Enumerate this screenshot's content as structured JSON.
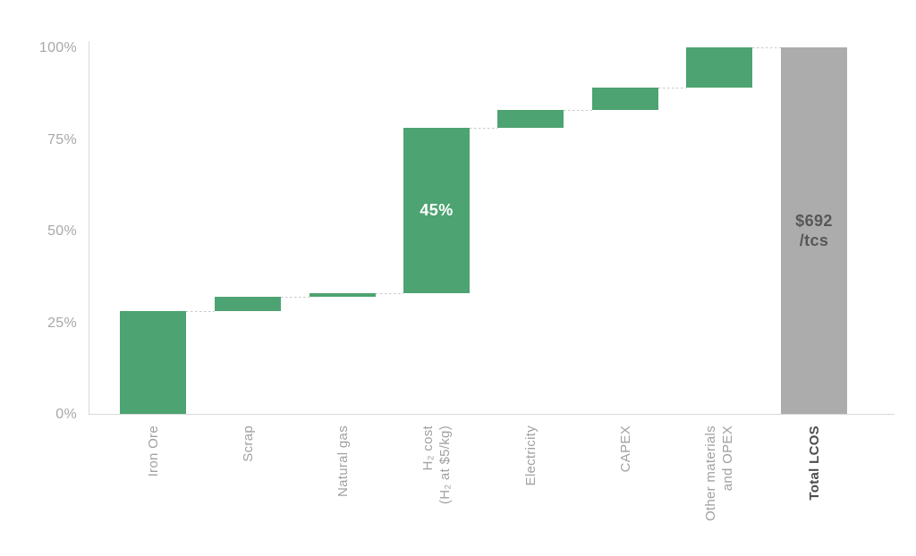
{
  "chart_data": {
    "type": "waterfall",
    "categories": [
      [
        "Iron Ore"
      ],
      [
        "Scrap"
      ],
      [
        "Natural gas"
      ],
      [
        "H₂ cost",
        "(H₂ at $5/kg)"
      ],
      [
        "Electricity"
      ],
      [
        "CAPEX"
      ],
      [
        "Other materials",
        "and OPEX"
      ],
      [
        "Total LCOS"
      ]
    ],
    "segments": [
      {
        "name": "Iron Ore",
        "value": 28,
        "start": 0,
        "end": 28
      },
      {
        "name": "Scrap",
        "value": 4,
        "start": 28,
        "end": 32
      },
      {
        "name": "Natural gas",
        "value": 1,
        "start": 32,
        "end": 33
      },
      {
        "name": "H₂ cost (H₂ at $5/kg)",
        "value": 45,
        "start": 33,
        "end": 78,
        "data_label": "45%"
      },
      {
        "name": "Electricity",
        "value": 5,
        "start": 78,
        "end": 83
      },
      {
        "name": "CAPEX",
        "value": 6,
        "start": 83,
        "end": 89
      },
      {
        "name": "Other materials and OPEX",
        "value": 11,
        "start": 89,
        "end": 100
      }
    ],
    "total_bar": {
      "name": "Total LCOS",
      "value": 100,
      "data_label_lines": [
        "$692",
        "/tcs"
      ]
    },
    "y_axis": {
      "ticks": [
        {
          "value": 0,
          "label": "0%"
        },
        {
          "value": 25,
          "label": "25%"
        },
        {
          "value": 50,
          "label": "50%"
        },
        {
          "value": 75,
          "label": "75%"
        },
        {
          "value": 100,
          "label": "100%"
        }
      ],
      "ylim": [
        0,
        100
      ]
    },
    "colors": {
      "segment_bar": "#4DA371",
      "total_bar": "#ACACAC",
      "segment_data_label": "#FFFFFF",
      "total_data_label": "#575757",
      "axis": "#D9D9D9",
      "connector": "#C9C9C9",
      "tick_text": "#A8A8A8",
      "category_text": "#A1A1A1",
      "total_category_text": "#4D4D4D"
    },
    "layout_hints": {
      "legend": "none",
      "grid": "none",
      "connectors": "dashed lines linking consecutive bar tops",
      "category_label_rotation_deg": 90
    }
  }
}
